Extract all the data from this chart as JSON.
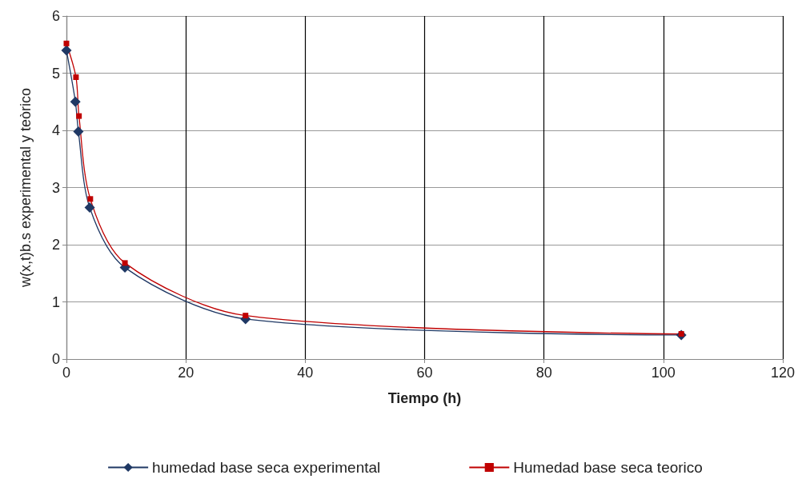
{
  "chart_data": {
    "type": "line",
    "xlabel": "Tiempo (h)",
    "ylabel": "w(x,t)b.s experimental y teòrico",
    "xlim": [
      0,
      120
    ],
    "xticks": [
      0,
      20,
      40,
      60,
      80,
      100,
      120
    ],
    "ylim": [
      0,
      6
    ],
    "yticks": [
      0,
      1,
      2,
      3,
      4,
      5,
      6
    ],
    "grid": true,
    "legend": "bottom",
    "series": [
      {
        "name": "humedad base seca experimental",
        "color": "#1f3864",
        "marker": "diamond",
        "x": [
          0,
          1.5,
          2,
          3.9,
          9.8,
          30,
          103
        ],
        "values": [
          5.4,
          4.5,
          3.98,
          2.65,
          1.6,
          0.7,
          0.42
        ]
      },
      {
        "name": "Humedad base seca teorico",
        "color": "#c00000",
        "marker": "square",
        "x": [
          0,
          1.6,
          2.1,
          4,
          9.8,
          30,
          103
        ],
        "values": [
          5.52,
          4.93,
          4.25,
          2.8,
          1.68,
          0.76,
          0.44
        ]
      }
    ]
  }
}
